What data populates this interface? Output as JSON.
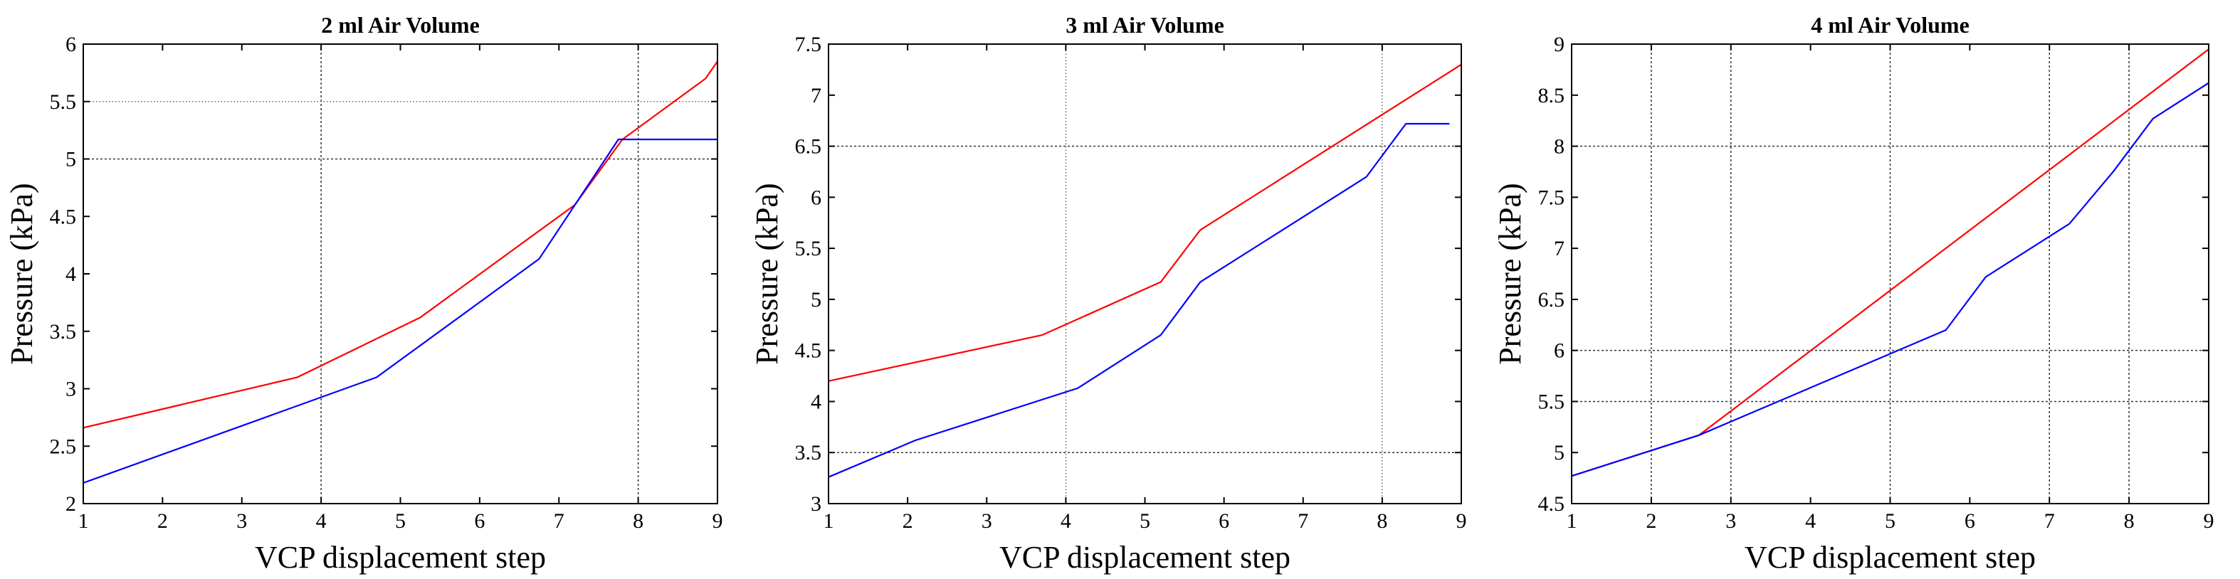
{
  "colors": {
    "red_series": "#ff0000",
    "blue_series": "#0000ff",
    "axes": "#000000"
  },
  "chart_data": [
    {
      "type": "line",
      "title": "2 ml  Air Volume",
      "xlabel": "VCP displacement step",
      "ylabel": "Pressure (kPa)",
      "xlim": [
        1,
        9
      ],
      "ylim": [
        2,
        6
      ],
      "xticks": [
        "1",
        "2",
        "3",
        "4",
        "5",
        "6",
        "7",
        "8",
        "9"
      ],
      "yticks": [
        "2",
        "2.5",
        "3",
        "3.5",
        "4",
        "4.5",
        "5",
        "5.5",
        "6"
      ],
      "grid": "partial",
      "vgrid": [
        {
          "x": 4,
          "style": "dash"
        },
        {
          "x": 8,
          "style": "dash"
        }
      ],
      "hgrid": [
        {
          "y": 5,
          "style": "dash"
        },
        {
          "y": 5.5,
          "style": "dot"
        }
      ],
      "series": [
        {
          "color": "red",
          "points": [
            [
              1,
              2.66
            ],
            [
              3.7,
              3.1
            ],
            [
              5.25,
              3.62
            ],
            [
              7.2,
              4.6
            ],
            [
              7.8,
              5.17
            ],
            [
              8.85,
              5.7
            ],
            [
              9,
              5.85
            ]
          ]
        },
        {
          "color": "blue",
          "points": [
            [
              1,
              2.18
            ],
            [
              4.7,
              3.1
            ],
            [
              6.75,
              4.13
            ],
            [
              7.25,
              4.65
            ],
            [
              7.75,
              5.17
            ],
            [
              9,
              5.17
            ]
          ]
        }
      ]
    },
    {
      "type": "line",
      "title": "3 ml  Air Volume",
      "xlabel": "VCP displacement step",
      "ylabel": "Pressure (kPa)",
      "xlim": [
        1,
        9
      ],
      "ylim": [
        3,
        7.5
      ],
      "xticks": [
        "1",
        "2",
        "3",
        "4",
        "5",
        "6",
        "7",
        "8",
        "9"
      ],
      "yticks": [
        "3",
        "3.5",
        "4",
        "4.5",
        "5",
        "5.5",
        "6",
        "6.5",
        "7",
        "7.5"
      ],
      "grid": "partial",
      "vgrid": [
        {
          "x": 4,
          "style": "dot"
        },
        {
          "x": 8,
          "style": "dot"
        }
      ],
      "hgrid": [
        {
          "y": 3.5,
          "style": "dash"
        },
        {
          "y": 6.5,
          "style": "dash"
        }
      ],
      "series": [
        {
          "color": "red",
          "points": [
            [
              1,
              4.2
            ],
            [
              3.7,
              4.65
            ],
            [
              5.2,
              5.17
            ],
            [
              5.7,
              5.68
            ],
            [
              9,
              7.3
            ]
          ]
        },
        {
          "color": "blue",
          "points": [
            [
              1,
              3.26
            ],
            [
              2.1,
              3.62
            ],
            [
              4.15,
              4.13
            ],
            [
              5.2,
              4.65
            ],
            [
              5.7,
              5.17
            ],
            [
              7.8,
              6.2
            ],
            [
              8.3,
              6.72
            ],
            [
              8.85,
              6.72
            ]
          ]
        }
      ]
    },
    {
      "type": "line",
      "title": "4 ml  Air Volume",
      "xlabel": "VCP displacement step",
      "ylabel": "Pressure (kPa)",
      "xlim": [
        1,
        9
      ],
      "ylim": [
        4.5,
        9
      ],
      "xticks": [
        "1",
        "2",
        "3",
        "4",
        "5",
        "6",
        "7",
        "8",
        "9"
      ],
      "yticks": [
        "4.5",
        "5",
        "5.5",
        "6",
        "6.5",
        "7",
        "7.5",
        "8",
        "8.5",
        "9"
      ],
      "grid": "partial",
      "vgrid": [
        {
          "x": 2,
          "style": "dash"
        },
        {
          "x": 3,
          "style": "dash"
        },
        {
          "x": 5,
          "style": "dash"
        },
        {
          "x": 7,
          "style": "dash"
        },
        {
          "x": 8,
          "style": "dash"
        }
      ],
      "hgrid": [
        {
          "y": 5.5,
          "style": "dash"
        },
        {
          "y": 6,
          "style": "dash"
        },
        {
          "y": 8,
          "style": "dash"
        }
      ],
      "series": [
        {
          "color": "red",
          "points": [
            [
              1,
              4.77
            ],
            [
              2.6,
              5.17
            ],
            [
              9,
              8.95
            ]
          ]
        },
        {
          "color": "blue",
          "points": [
            [
              1,
              4.77
            ],
            [
              2.6,
              5.17
            ],
            [
              5.7,
              6.2
            ],
            [
              6.2,
              6.72
            ],
            [
              7.25,
              7.24
            ],
            [
              7.8,
              7.75
            ],
            [
              8.3,
              8.27
            ],
            [
              9,
              8.62
            ]
          ]
        }
      ]
    }
  ]
}
